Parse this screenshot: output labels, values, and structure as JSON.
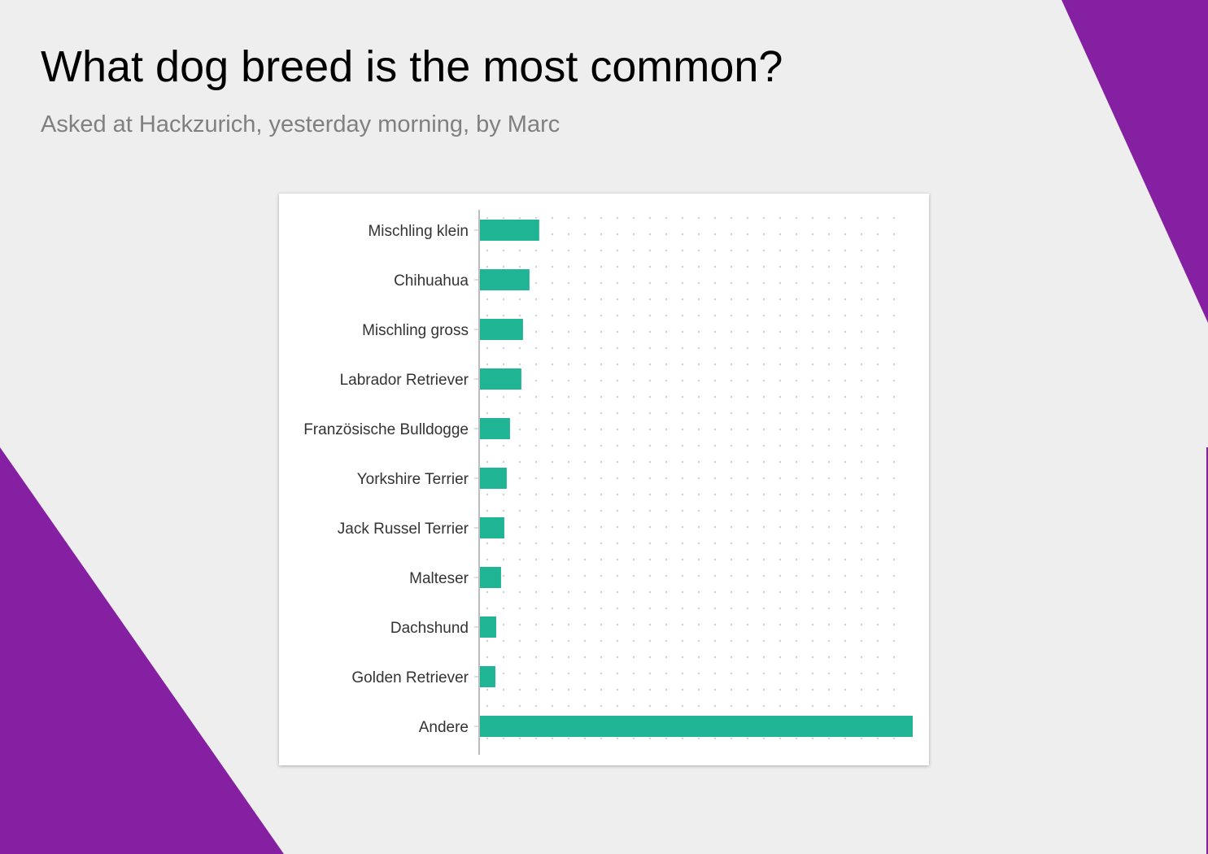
{
  "header": {
    "title": "What dog breed is the most common?",
    "subtitle": "Asked at Hackzurich, yesterday morning, by Marc"
  },
  "colors": {
    "background": "#eeeeee",
    "accent_shape": "#8520a3",
    "bar": "#1fb494",
    "title": "#000000",
    "subtitle": "#808080",
    "card": "#ffffff"
  },
  "chart_data": {
    "type": "bar",
    "orientation": "horizontal",
    "title": "",
    "xlabel": "",
    "ylabel": "",
    "categories": [
      "Mischling klein",
      "Chihuahua",
      "Mischling gross",
      "Labrador Retriever",
      "Französische Bulldogge",
      "Yorkshire Terrier",
      "Jack Russel Terrier",
      "Malteser",
      "Dachshund",
      "Golden Retriever",
      "Andere"
    ],
    "values": [
      37,
      31,
      27,
      26,
      19,
      17,
      15.5,
      13.5,
      10.5,
      10,
      267
    ],
    "xlim": [
      0,
      267
    ],
    "grid": "dotted",
    "legend": "none",
    "value_labels": false
  }
}
